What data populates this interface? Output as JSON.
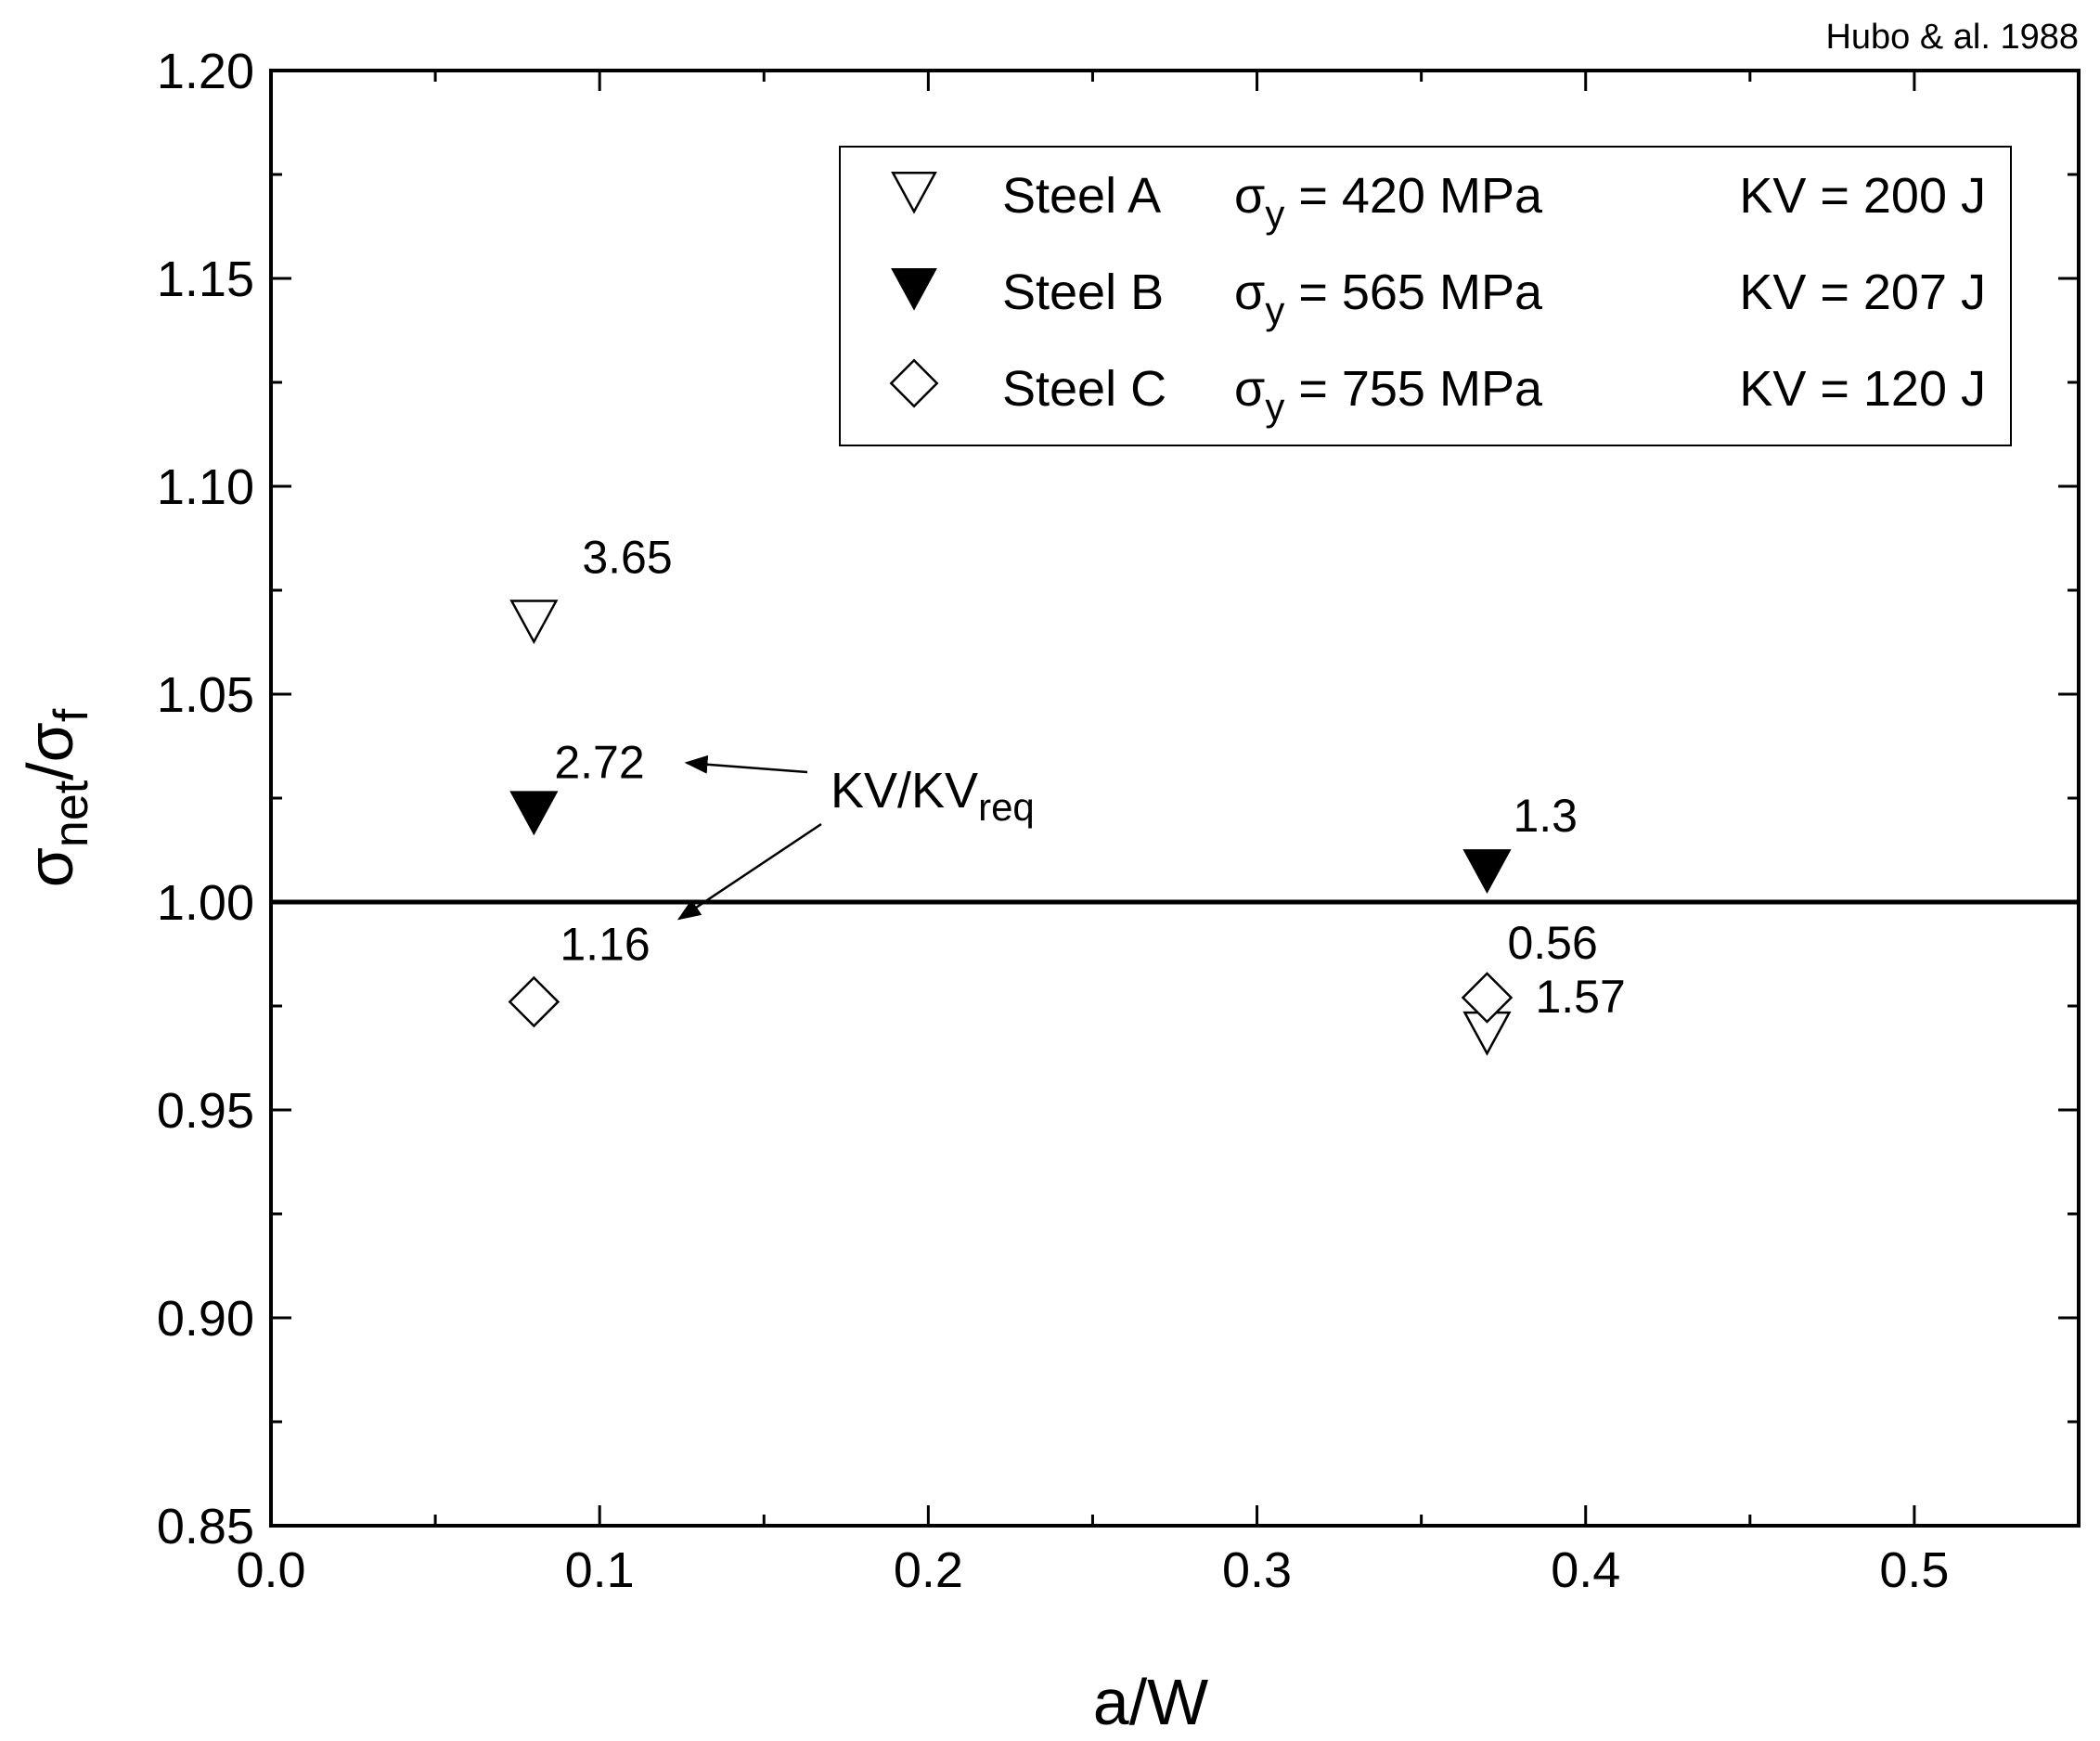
{
  "credit": "Hubo & al. 1988",
  "chart_data": {
    "type": "scatter",
    "xlabel": "a/W",
    "ylabel": {
      "main": "σ",
      "sub1": "net",
      "slash": "/σ",
      "sub2": "f"
    },
    "xlim": [
      0.0,
      0.55
    ],
    "ylim": [
      0.85,
      1.2
    ],
    "xticks": [
      0.0,
      0.1,
      0.2,
      0.3,
      0.4,
      0.5
    ],
    "xtick_labels": [
      "0.0",
      "0.1",
      "0.2",
      "0.3",
      "0.4",
      "0.5"
    ],
    "yticks": [
      0.85,
      0.9,
      0.95,
      1.0,
      1.05,
      1.1,
      1.15,
      1.2
    ],
    "ytick_labels": [
      "0.85",
      "0.90",
      "0.95",
      "1.00",
      "1.05",
      "1.10",
      "1.15",
      "1.20"
    ],
    "reference_line": {
      "y": 1.0
    },
    "series": [
      {
        "name": "Steel A",
        "marker": "open-triangle-down",
        "legend": {
          "steel": "Steel A",
          "sigma": "σ",
          "sub": "y",
          "yield": "= 420 MPa",
          "kv": "KV = 200 J"
        },
        "points": [
          {
            "x": 0.08,
            "y": 1.068,
            "label": "3.65"
          },
          {
            "x": 0.37,
            "y": 0.969,
            "label": "1.57"
          }
        ]
      },
      {
        "name": "Steel B",
        "marker": "filled-triangle-down",
        "legend": {
          "steel": "Steel B",
          "sigma": "σ",
          "sub": "y",
          "yield": "= 565 MPa",
          "kv": "KV = 207 J"
        },
        "points": [
          {
            "x": 0.08,
            "y": 1.022,
            "label": "2.72"
          },
          {
            "x": 0.37,
            "y": 1.008,
            "label": "1.3"
          }
        ]
      },
      {
        "name": "Steel C",
        "marker": "open-diamond",
        "legend": {
          "steel": "Steel C",
          "sigma": "σ",
          "sub": "y",
          "yield": "= 755 MPa",
          "kv": "KV = 120 J"
        },
        "points": [
          {
            "x": 0.08,
            "y": 0.976,
            "label": "1.16"
          },
          {
            "x": 0.37,
            "y": 0.977,
            "label": "0.56"
          }
        ]
      }
    ],
    "annotation": {
      "text": "KV/KV",
      "sub": "req",
      "arrows_to": [
        "2.72",
        "1.16"
      ]
    }
  }
}
